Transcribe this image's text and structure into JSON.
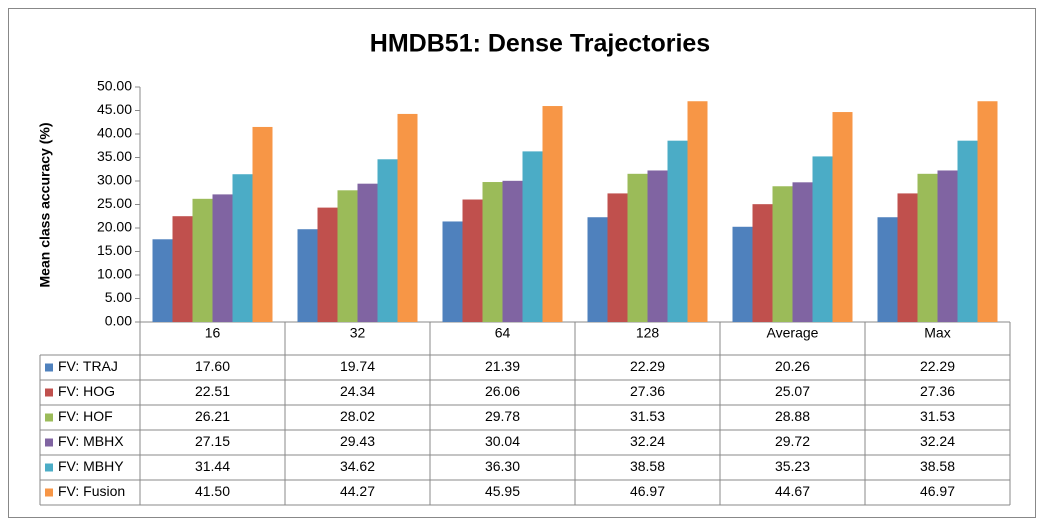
{
  "chart_data": {
    "type": "bar",
    "title": "HMDB51: Dense Trajectories",
    "y_label": "Mean class accuracy (%)",
    "categories": [
      "16",
      "32",
      "64",
      "128",
      "Average",
      "Max"
    ],
    "series": [
      {
        "name": "FV: TRAJ",
        "color": "#4f81bd",
        "values": [
          17.6,
          19.74,
          21.39,
          22.29,
          20.26,
          22.29
        ],
        "value_labels": [
          "17.60",
          "19.74",
          "21.39",
          "22.29",
          "20.26",
          "22.29"
        ]
      },
      {
        "name": "FV: HOG",
        "color": "#c0504d",
        "values": [
          22.51,
          24.34,
          26.06,
          27.36,
          25.07,
          27.36
        ],
        "value_labels": [
          "22.51",
          "24.34",
          "26.06",
          "27.36",
          "25.07",
          "27.36"
        ]
      },
      {
        "name": "FV: HOF",
        "color": "#9bbb59",
        "values": [
          26.21,
          28.02,
          29.78,
          31.53,
          28.88,
          31.53
        ],
        "value_labels": [
          "26.21",
          "28.02",
          "29.78",
          "31.53",
          "28.88",
          "31.53"
        ]
      },
      {
        "name": "FV: MBHX",
        "color": "#8064a2",
        "values": [
          27.15,
          29.43,
          30.04,
          32.24,
          29.72,
          32.24
        ],
        "value_labels": [
          "27.15",
          "29.43",
          "30.04",
          "32.24",
          "29.72",
          "32.24"
        ]
      },
      {
        "name": "FV: MBHY",
        "color": "#4bacc6",
        "values": [
          31.44,
          34.62,
          36.3,
          38.58,
          35.23,
          38.58
        ],
        "value_labels": [
          "31.44",
          "34.62",
          "36.30",
          "38.58",
          "35.23",
          "38.58"
        ]
      },
      {
        "name": "FV: Fusion",
        "color": "#f79646",
        "values": [
          41.5,
          44.27,
          45.95,
          46.97,
          44.67,
          46.97
        ],
        "value_labels": [
          "41.50",
          "44.27",
          "45.95",
          "46.97",
          "44.67",
          "46.97"
        ]
      }
    ],
    "ylim": [
      0,
      50
    ],
    "yticks": [
      {
        "value": 0,
        "label": "0.00"
      },
      {
        "value": 5,
        "label": "5.00"
      },
      {
        "value": 10,
        "label": "10.00"
      },
      {
        "value": 15,
        "label": "15.00"
      },
      {
        "value": 20,
        "label": "20.00"
      },
      {
        "value": 25,
        "label": "25.00"
      },
      {
        "value": 30,
        "label": "30.00"
      },
      {
        "value": 35,
        "label": "35.00"
      },
      {
        "value": 40,
        "label": "40.00"
      },
      {
        "value": 45,
        "label": "45.00"
      },
      {
        "value": 50,
        "label": "50.00"
      }
    ],
    "grid": false
  }
}
